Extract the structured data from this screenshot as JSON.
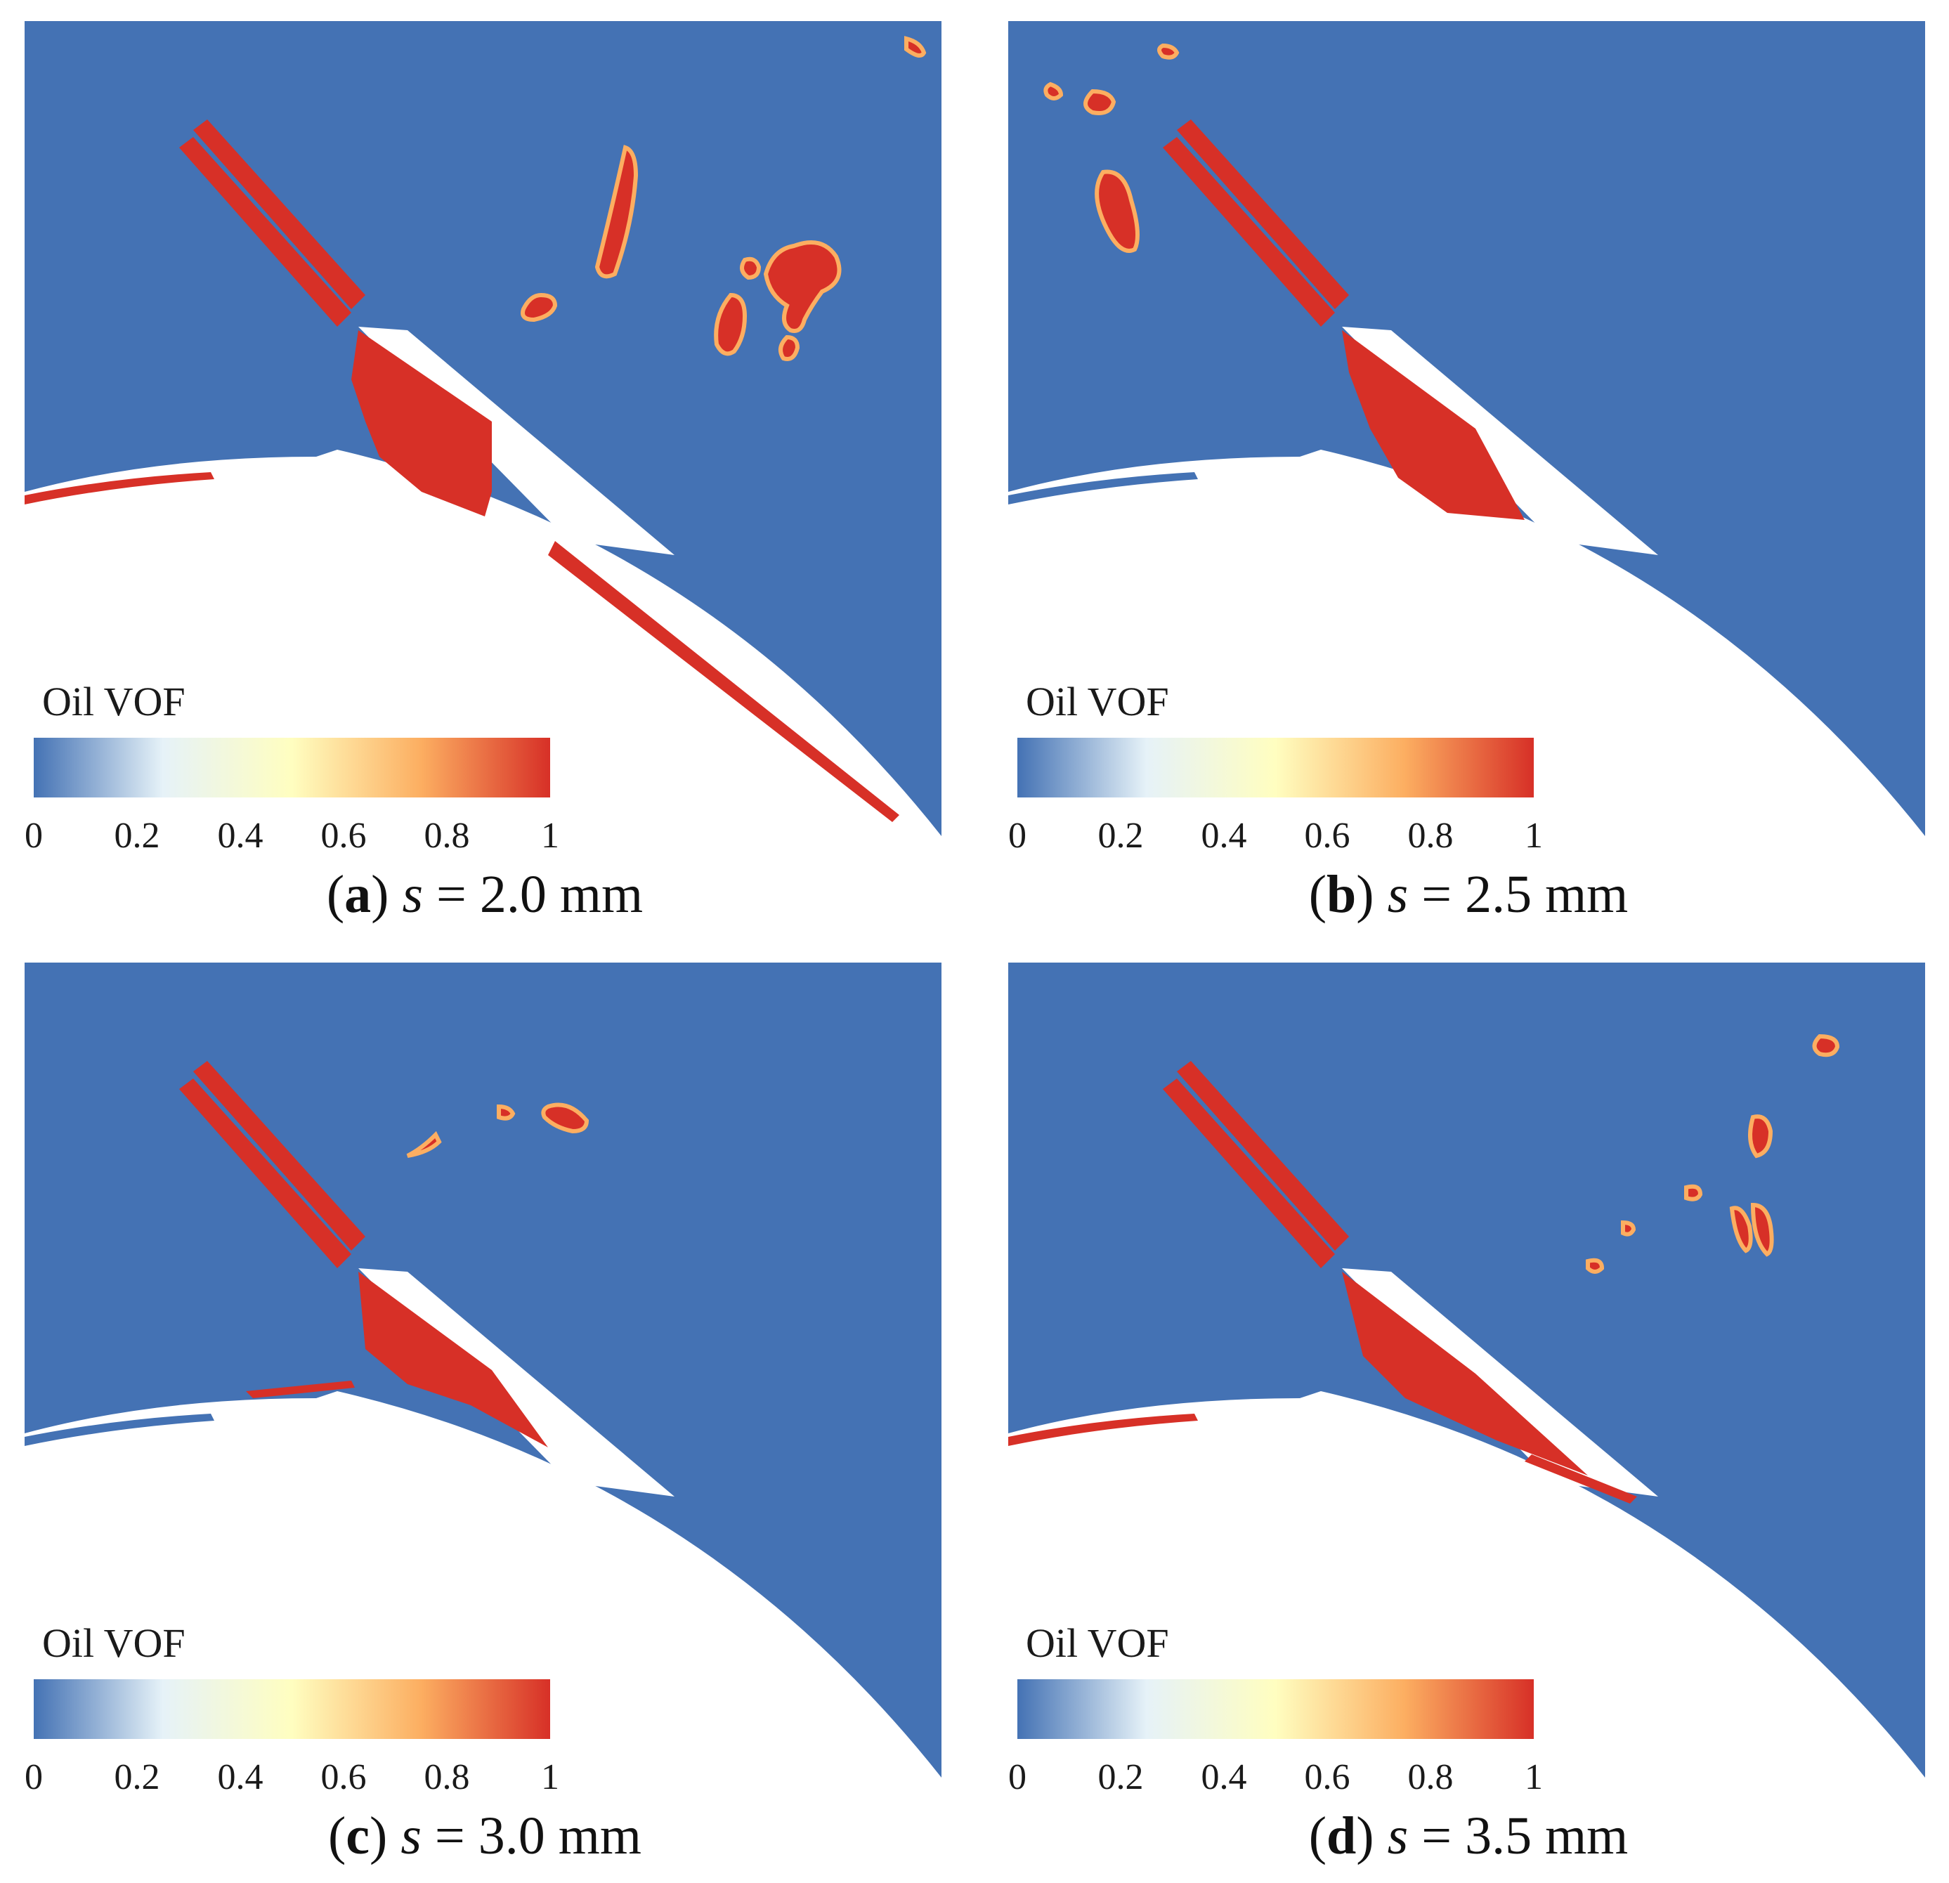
{
  "colors": {
    "low": "#4472b4",
    "high": "#d73027",
    "scale": [
      "#4472b4",
      "#e6f2f8",
      "#fffec0",
      "#fcae61",
      "#d73027"
    ]
  },
  "panels": [
    {
      "label": "a",
      "variable": "s",
      "equals": " = ",
      "value": "2.0 mm",
      "legend_title": "Oil VOF",
      "ticks": [
        "0",
        "0.2",
        "0.4",
        "0.6",
        "0.8",
        "1"
      ]
    },
    {
      "label": "b",
      "variable": "s",
      "equals": " = ",
      "value": "2.5 mm",
      "legend_title": "Oil VOF",
      "ticks": [
        "0",
        "0.2",
        "0.4",
        "0.6",
        "0.8",
        "1"
      ]
    },
    {
      "label": "c",
      "variable": "s",
      "equals": " = ",
      "value": "3.0 mm",
      "legend_title": "Oil VOF",
      "ticks": [
        "0",
        "0.2",
        "0.4",
        "0.6",
        "0.8",
        "1"
      ]
    },
    {
      "label": "d",
      "variable": "s",
      "equals": " = ",
      "value": "3.5 mm",
      "legend_title": "Oil VOF",
      "ticks": [
        "0",
        "0.2",
        "0.4",
        "0.6",
        "0.8",
        "1"
      ]
    }
  ]
}
